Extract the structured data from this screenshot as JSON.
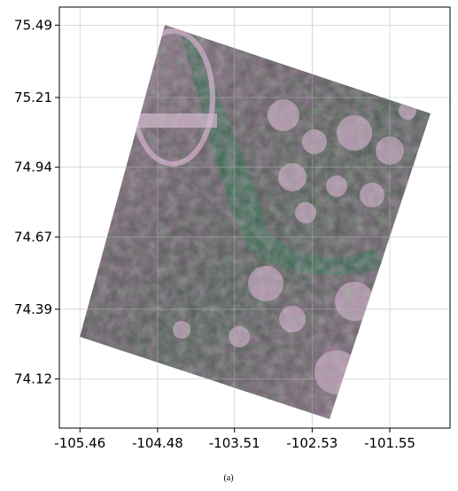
{
  "chart_data": {
    "type": "image",
    "xlim": [
      -105.72,
      -100.79
    ],
    "ylim": [
      73.93,
      75.56
    ],
    "xticks": [
      -105.46,
      -104.48,
      -103.51,
      -102.53,
      -101.55
    ],
    "yticks": [
      75.49,
      75.21,
      74.94,
      74.67,
      74.39,
      74.12
    ],
    "grid": true
  },
  "caption": "(a)"
}
